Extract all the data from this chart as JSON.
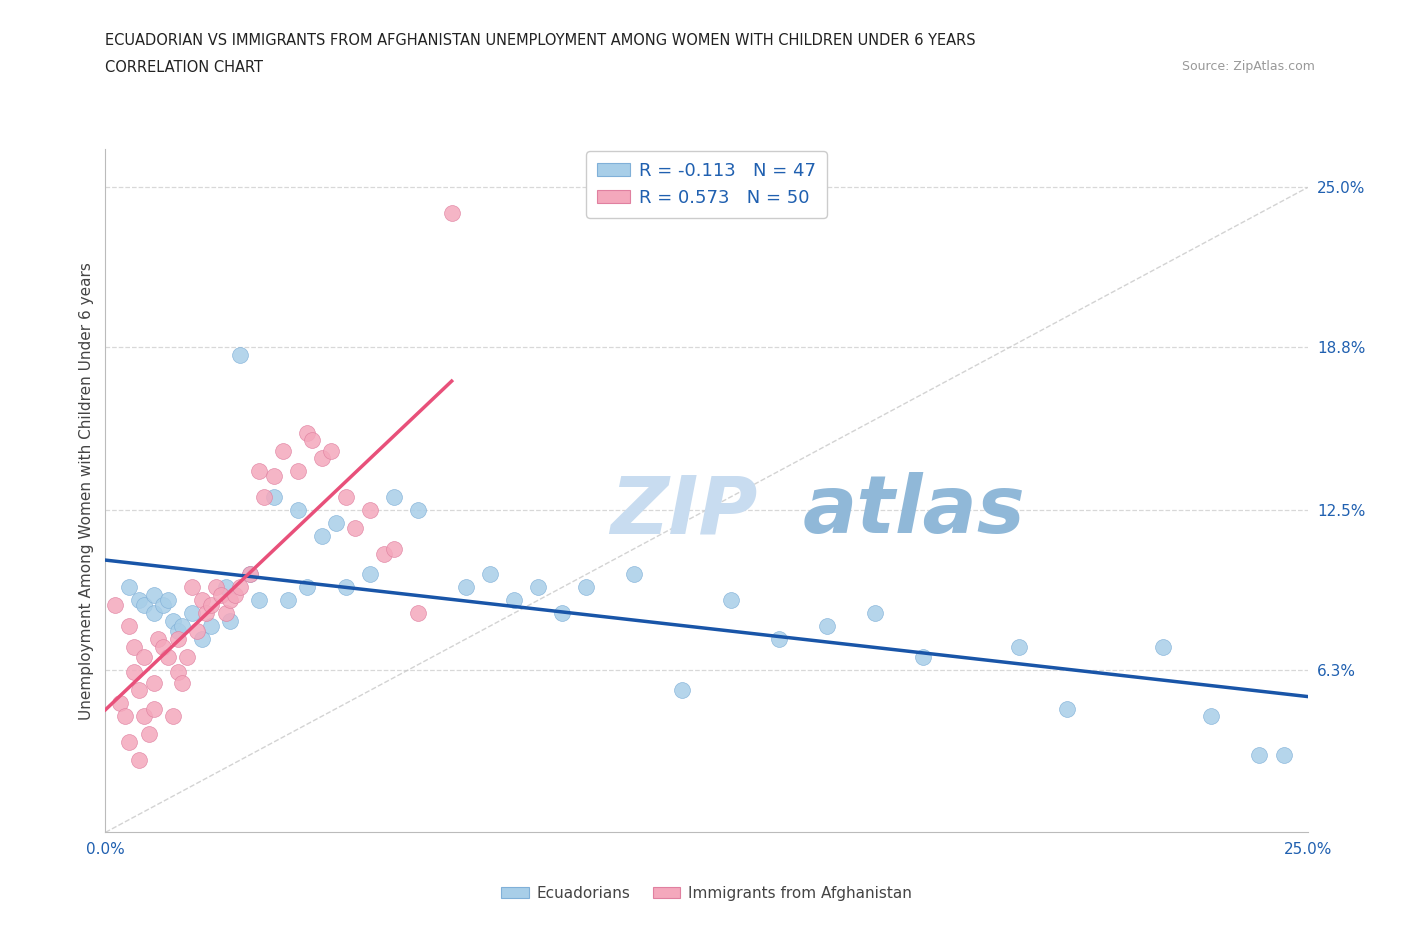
{
  "title_line1": "ECUADORIAN VS IMMIGRANTS FROM AFGHANISTAN UNEMPLOYMENT AMONG WOMEN WITH CHILDREN UNDER 6 YEARS",
  "title_line2": "CORRELATION CHART",
  "source": "Source: ZipAtlas.com",
  "ylabel": "Unemployment Among Women with Children Under 6 years",
  "xlim": [
    0.0,
    0.25
  ],
  "ylim": [
    0.0,
    0.265
  ],
  "yticks_right": [
    0.063,
    0.125,
    0.188,
    0.25
  ],
  "ytick_labels_right": [
    "6.3%",
    "12.5%",
    "18.8%",
    "25.0%"
  ],
  "legend_R1": "R = -0.113",
  "legend_N1": "N = 47",
  "legend_R2": "R = 0.573",
  "legend_N2": "N = 50",
  "color_ecuadorian": "#A8CEE8",
  "color_afghanistan": "#F4A8BC",
  "color_trend_ecuadorian": "#1955A8",
  "color_trend_afghanistan": "#E8507A",
  "color_diagonal": "#C8C8C8",
  "color_grid": "#D8D8D8",
  "color_right_labels": "#2060B0",
  "ecuadorian_x": [
    0.005,
    0.007,
    0.008,
    0.01,
    0.01,
    0.012,
    0.013,
    0.014,
    0.015,
    0.016,
    0.018,
    0.02,
    0.022,
    0.025,
    0.026,
    0.028,
    0.03,
    0.032,
    0.035,
    0.038,
    0.04,
    0.042,
    0.045,
    0.048,
    0.05,
    0.055,
    0.06,
    0.065,
    0.075,
    0.08,
    0.085,
    0.09,
    0.095,
    0.1,
    0.11,
    0.12,
    0.13,
    0.14,
    0.15,
    0.16,
    0.17,
    0.19,
    0.2,
    0.22,
    0.23,
    0.24,
    0.245
  ],
  "ecuadorian_y": [
    0.095,
    0.09,
    0.088,
    0.092,
    0.085,
    0.088,
    0.09,
    0.082,
    0.078,
    0.08,
    0.085,
    0.075,
    0.08,
    0.095,
    0.082,
    0.185,
    0.1,
    0.09,
    0.13,
    0.09,
    0.125,
    0.095,
    0.115,
    0.12,
    0.095,
    0.1,
    0.13,
    0.125,
    0.095,
    0.1,
    0.09,
    0.095,
    0.085,
    0.095,
    0.1,
    0.055,
    0.09,
    0.075,
    0.08,
    0.085,
    0.068,
    0.072,
    0.048,
    0.072,
    0.045,
    0.03,
    0.03
  ],
  "afghanistan_x": [
    0.002,
    0.003,
    0.004,
    0.005,
    0.005,
    0.006,
    0.006,
    0.007,
    0.007,
    0.008,
    0.008,
    0.009,
    0.01,
    0.01,
    0.011,
    0.012,
    0.013,
    0.014,
    0.015,
    0.015,
    0.016,
    0.017,
    0.018,
    0.019,
    0.02,
    0.021,
    0.022,
    0.023,
    0.024,
    0.025,
    0.026,
    0.027,
    0.028,
    0.03,
    0.032,
    0.033,
    0.035,
    0.037,
    0.04,
    0.042,
    0.043,
    0.045,
    0.047,
    0.05,
    0.052,
    0.055,
    0.058,
    0.06,
    0.065,
    0.072
  ],
  "afghanistan_y": [
    0.088,
    0.05,
    0.045,
    0.08,
    0.035,
    0.062,
    0.072,
    0.055,
    0.028,
    0.068,
    0.045,
    0.038,
    0.058,
    0.048,
    0.075,
    0.072,
    0.068,
    0.045,
    0.075,
    0.062,
    0.058,
    0.068,
    0.095,
    0.078,
    0.09,
    0.085,
    0.088,
    0.095,
    0.092,
    0.085,
    0.09,
    0.092,
    0.095,
    0.1,
    0.14,
    0.13,
    0.138,
    0.148,
    0.14,
    0.155,
    0.152,
    0.145,
    0.148,
    0.13,
    0.118,
    0.125,
    0.108,
    0.11,
    0.085,
    0.24
  ],
  "watermark_zip": "ZIP",
  "watermark_atlas": "atlas",
  "watermark_color_zip": "#C8DCF0",
  "watermark_color_atlas": "#90B8D8"
}
